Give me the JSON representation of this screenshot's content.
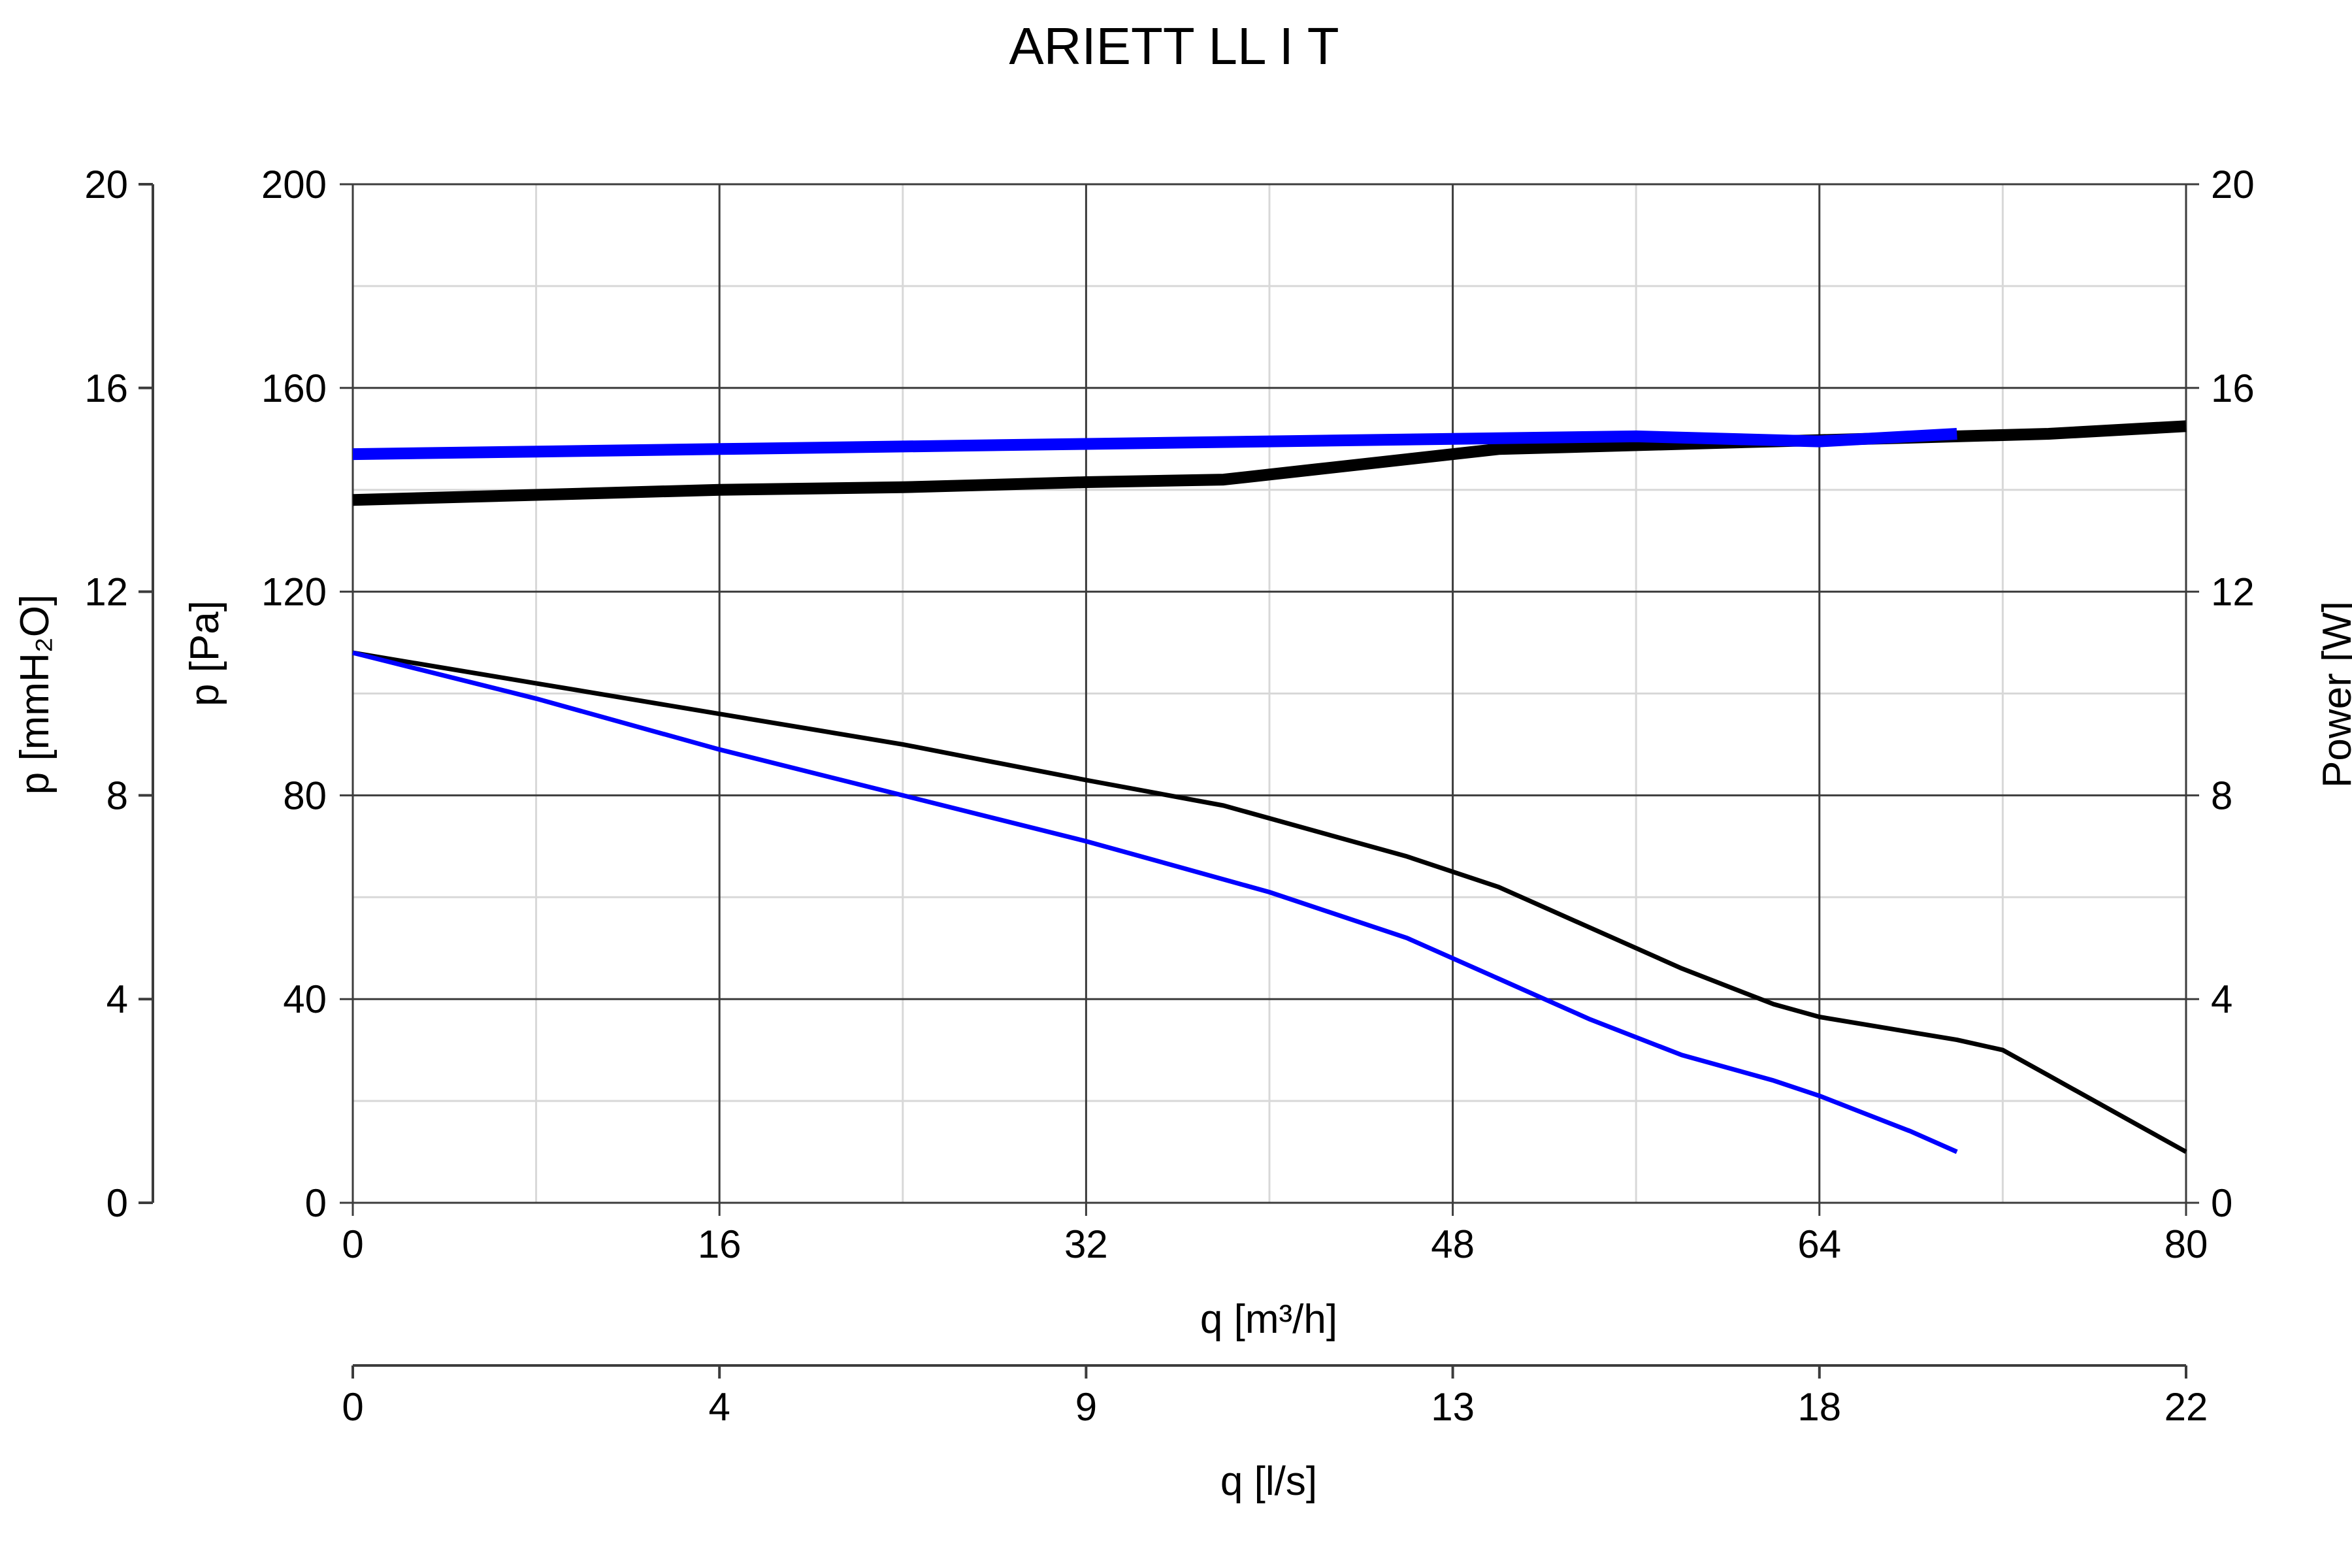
{
  "chart_data": {
    "type": "line",
    "title": "ARIETT LL I T",
    "xlabel": "q [m³/h]",
    "xlim": [
      0,
      80
    ],
    "x_ticks": [
      "0",
      "16",
      "32",
      "48",
      "64",
      "80"
    ],
    "x2label": "q [l/s]",
    "x2_ticks": [
      "0",
      "4",
      "9",
      "13",
      "18",
      "22"
    ],
    "ylabel": "p [Pa]",
    "ylim": [
      0,
      200
    ],
    "y_ticks": [
      "0",
      "40",
      "80",
      "120",
      "160",
      "200"
    ],
    "y_left_outer_label": "p [mmH₂O]",
    "y_left_outer_ticks": [
      "0",
      "4",
      "8",
      "12",
      "16",
      "20"
    ],
    "y_right_label": "Power [W]",
    "y_right_ticks": [
      "0",
      "4",
      "8",
      "12",
      "16",
      "20"
    ],
    "y_right_lim": [
      0,
      20
    ],
    "grid": true,
    "series": [
      {
        "axis": "pressure",
        "color": "#000000",
        "x": [
          0,
          8,
          16,
          24,
          32,
          38,
          42,
          46,
          50,
          54,
          58,
          62,
          64,
          66,
          68,
          70,
          72,
          74,
          76,
          78,
          80
        ],
        "y": [
          108,
          102,
          96,
          90,
          83,
          78,
          73,
          68,
          62,
          54,
          46,
          39,
          36.5,
          35,
          33.5,
          32,
          30,
          25,
          20,
          15,
          10
        ]
      },
      {
        "axis": "pressure",
        "color": "#0000ff",
        "x": [
          0,
          8,
          16,
          24,
          32,
          36,
          40,
          44,
          46,
          50,
          54,
          58,
          62,
          64,
          66,
          68,
          70
        ],
        "y": [
          108,
          99,
          89,
          80,
          71,
          66,
          61,
          55,
          52,
          44,
          36,
          29,
          24,
          21,
          17.5,
          14,
          10
        ]
      },
      {
        "axis": "power",
        "color": "#000000",
        "x": [
          0,
          8,
          16,
          24,
          32,
          38,
          42,
          46,
          50,
          54,
          58,
          62,
          66,
          70,
          74,
          80
        ],
        "y": [
          13.8,
          13.9,
          14.0,
          14.05,
          14.15,
          14.2,
          14.4,
          14.6,
          14.8,
          14.85,
          14.9,
          14.95,
          15.0,
          15.05,
          15.1,
          15.25
        ]
      },
      {
        "axis": "power",
        "color": "#0000ff",
        "x": [
          0,
          8,
          16,
          24,
          32,
          40,
          48,
          56,
          60,
          64,
          70
        ],
        "y": [
          14.7,
          14.75,
          14.8,
          14.85,
          14.9,
          14.95,
          15.0,
          15.05,
          15.0,
          14.95,
          15.1
        ]
      }
    ]
  }
}
